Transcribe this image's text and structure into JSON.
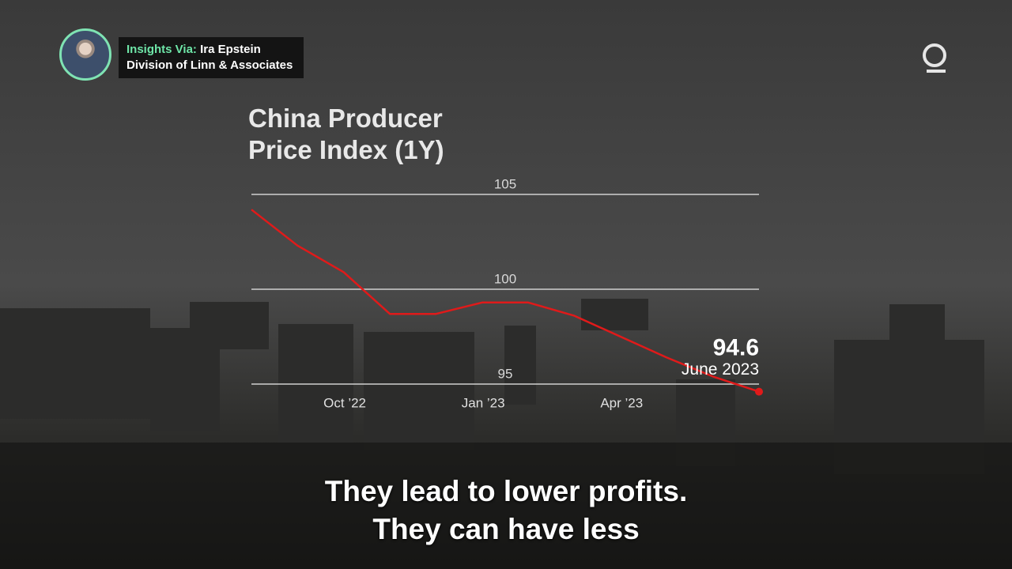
{
  "overlay": {
    "label": "Insights Via:",
    "name": "Ira Epstein",
    "affiliation": "Division of Linn & Associates"
  },
  "captions": [
    "They lead to lower profits.",
    "They can have less"
  ],
  "chart_data": {
    "type": "line",
    "title": "China Producer Price Index (1Y)",
    "categories": [
      null,
      null,
      null,
      "Oct ’22",
      null,
      null,
      "Jan ’23",
      null,
      null,
      "Apr ’23",
      null,
      null
    ],
    "series": [
      {
        "name": "China PPI",
        "color": "#e01a1a",
        "values": [
          104.2,
          102.3,
          100.9,
          98.7,
          98.7,
          99.3,
          99.3,
          98.6,
          97.5,
          96.4,
          95.4,
          94.6
        ]
      }
    ],
    "annotation": "June 2023",
    "ylim": [
      95,
      105
    ],
    "yticks": [
      95,
      100,
      105
    ],
    "grid": true
  }
}
